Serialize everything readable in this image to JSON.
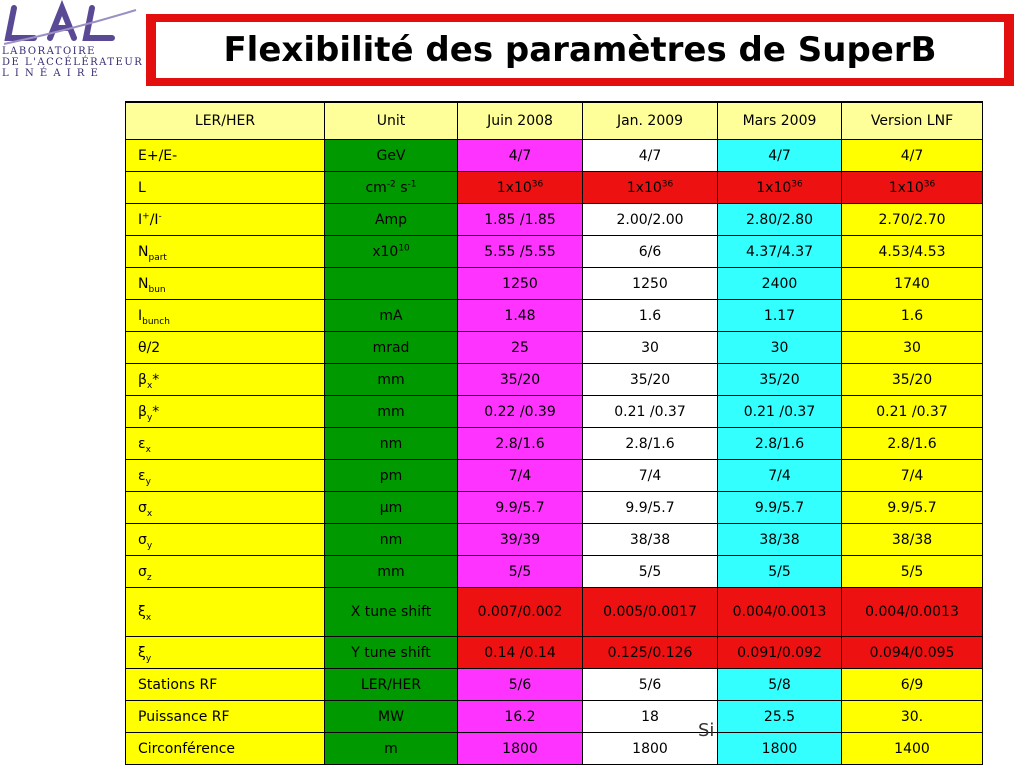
{
  "logo": {
    "letters": "LAL",
    "line1": "LABORATOIRE",
    "line2": "DE L'ACCÉLÉRATEUR",
    "line3": "L I N É A I R E"
  },
  "title": "Flexibilité des paramètres de SuperB",
  "footer_fragment": "Si",
  "colors": {
    "title_red": "#e30f0f",
    "label_yellow": "#ffff00",
    "unit_green": "#009900",
    "juin_magenta": "#ff33ff",
    "mars_cyan": "#33ffff",
    "lumi_red": "#ee1111",
    "header_yellow": "#ffff99"
  },
  "table": {
    "headers": [
      "LER/HER",
      "Unit",
      "Juin 2008",
      "Jan. 2009",
      "Mars 2009",
      "Version LNF"
    ],
    "rows": {
      "energy": {
        "label": "E+/E-",
        "unit": "GeV",
        "juin": "4/7",
        "jan": "4/7",
        "mars": "4/7",
        "lnf": "4/7"
      },
      "lumi": {
        "label": "L",
        "unit_base": "cm",
        "unit_exp1": "-2",
        "unit_mid": " s",
        "unit_exp2": "-1",
        "base": "1x10",
        "exp": "36"
      },
      "current": {
        "label_base": "I",
        "label_sup1": "+",
        "label_mid": "/I",
        "label_sup2": "-",
        "unit": "Amp",
        "juin": "1.85 /1.85",
        "jan": "2.00/2.00",
        "mars": "2.80/2.80",
        "lnf": "2.70/2.70"
      },
      "npart": {
        "label_base": "N",
        "label_sub": "part",
        "unit_base": "x10",
        "unit_exp": "10",
        "juin": "5.55 /5.55",
        "jan": "6/6",
        "mars": "4.37/4.37",
        "lnf": "4.53/4.53"
      },
      "nbun": {
        "label_base": "N",
        "label_sub": "bun",
        "unit": "",
        "juin": "1250",
        "jan": "1250",
        "mars": "2400",
        "lnf": "1740"
      },
      "ibunch": {
        "label_base": "I",
        "label_sub": "bunch",
        "unit": "mA",
        "juin": "1.48",
        "jan": "1.6",
        "mars": "1.17",
        "lnf": "1.6"
      },
      "theta": {
        "label": "θ/2",
        "unit": "mrad",
        "juin": "25",
        "jan": "30",
        "mars": "30",
        "lnf": "30"
      },
      "betax": {
        "label_base": "β",
        "label_sub": "x",
        "label_suffix": "*",
        "unit": "mm",
        "juin": "35/20",
        "jan": "35/20",
        "mars": "35/20",
        "lnf": "35/20"
      },
      "betay": {
        "label_base": "β",
        "label_sub": "y",
        "label_suffix": "*",
        "unit": "mm",
        "juin": "0.22 /0.39",
        "jan": "0.21 /0.37",
        "mars": "0.21 /0.37",
        "lnf": "0.21 /0.37"
      },
      "epsx": {
        "label_base": "ε",
        "label_sub": "x",
        "unit": "nm",
        "juin": "2.8/1.6",
        "jan": "2.8/1.6",
        "mars": "2.8/1.6",
        "lnf": "2.8/1.6"
      },
      "epsy": {
        "label_base": "ε",
        "label_sub": "y",
        "unit": "pm",
        "juin": "7/4",
        "jan": "7/4",
        "mars": "7/4",
        "lnf": "7/4"
      },
      "sigx": {
        "label_base": "σ",
        "label_sub": "x",
        "unit": "μm",
        "juin": "9.9/5.7",
        "jan": "9.9/5.7",
        "mars": "9.9/5.7",
        "lnf": "9.9/5.7"
      },
      "sigy": {
        "label_base": "σ",
        "label_sub": "y",
        "unit": "nm",
        "juin": "39/39",
        "jan": "38/38",
        "mars": "38/38",
        "lnf": "38/38"
      },
      "sigz": {
        "label_base": "σ",
        "label_sub": "z",
        "unit": "mm",
        "juin": "5/5",
        "jan": "5/5",
        "mars": "5/5",
        "lnf": "5/5"
      },
      "xix": {
        "label_base": "ξ",
        "label_sub": "x",
        "unit": "X tune shift",
        "juin": "0.007/0.002",
        "jan": "0.005/0.0017",
        "mars": "0.004/0.0013",
        "lnf": "0.004/0.0013"
      },
      "xiy": {
        "label_base": "ξ",
        "label_sub": "y",
        "unit": "Y tune shift",
        "juin": "0.14 /0.14",
        "jan": "0.125/0.126",
        "mars": "0.091/0.092",
        "lnf": "0.094/0.095"
      },
      "rf_st": {
        "label": "Stations RF",
        "unit": "LER/HER",
        "juin": "5/6",
        "jan": "5/6",
        "mars": "5/8",
        "lnf": "6/9"
      },
      "rf_pw": {
        "label": "Puissance RF",
        "unit": "MW",
        "juin": "16.2",
        "jan": "18",
        "mars": "25.5",
        "lnf": "30."
      },
      "circ": {
        "label": "Circonférence",
        "unit": "m",
        "juin": "1800",
        "jan": "1800",
        "mars": "1800",
        "lnf": "1400"
      }
    }
  }
}
